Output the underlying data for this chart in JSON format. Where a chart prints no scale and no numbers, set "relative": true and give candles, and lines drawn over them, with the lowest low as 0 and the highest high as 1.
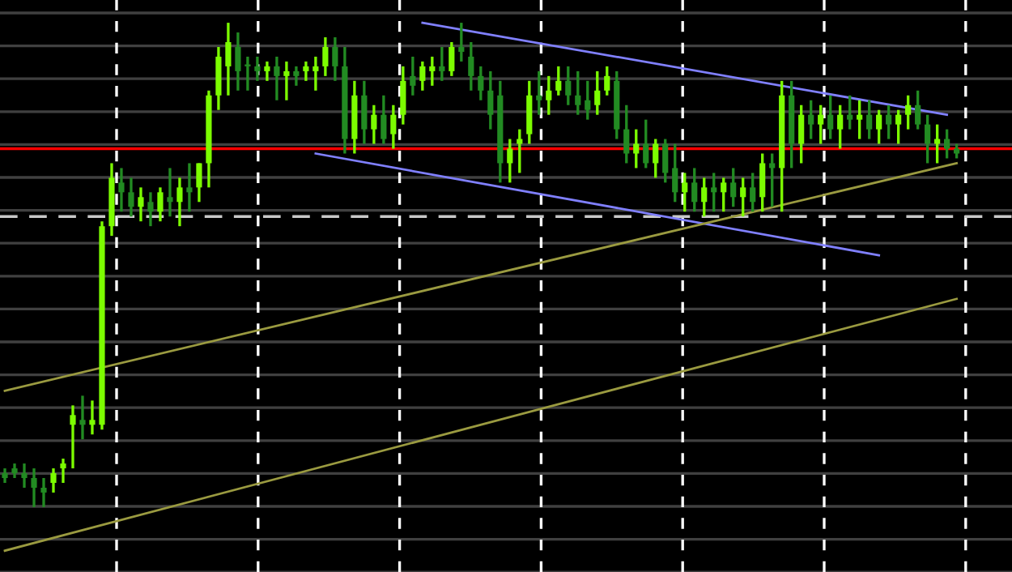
{
  "chart_data": {
    "type": "candlestick",
    "relative": true,
    "grid": true,
    "categories": [
      null,
      null,
      null,
      null,
      null,
      null,
      null,
      null,
      null,
      null,
      null,
      null,
      null,
      null,
      null,
      null,
      null,
      null,
      null,
      null,
      null,
      null,
      null,
      null,
      null,
      null,
      null,
      null,
      null,
      null,
      null,
      null,
      null,
      null,
      null,
      null,
      null,
      null,
      null,
      null,
      null,
      null,
      null,
      null,
      null,
      null,
      null,
      null,
      null,
      null,
      null,
      null,
      null,
      null,
      null,
      null,
      null,
      null,
      null,
      null,
      null,
      null,
      null,
      null,
      null,
      null,
      null,
      null,
      null,
      null,
      null,
      null,
      null,
      null,
      null,
      null,
      null,
      null,
      null,
      null,
      null,
      null,
      null,
      null,
      null,
      null,
      null,
      null,
      null,
      null,
      null,
      null,
      null,
      null,
      null,
      null,
      null,
      null,
      null
    ],
    "ohlc": [
      [
        0.07,
        0.08,
        0.05,
        0.06
      ],
      [
        0.08,
        0.09,
        0.06,
        0.07
      ],
      [
        0.07,
        0.09,
        0.04,
        0.06
      ],
      [
        0.06,
        0.08,
        0.0,
        0.04
      ],
      [
        0.04,
        0.06,
        0.0,
        0.03
      ],
      [
        0.05,
        0.08,
        0.03,
        0.07
      ],
      [
        0.08,
        0.1,
        0.05,
        0.09
      ],
      [
        0.17,
        0.21,
        0.08,
        0.19
      ],
      [
        0.18,
        0.23,
        0.14,
        0.17
      ],
      [
        0.17,
        0.22,
        0.15,
        0.18
      ],
      [
        0.17,
        0.59,
        0.16,
        0.58
      ],
      [
        0.58,
        0.71,
        0.56,
        0.68
      ],
      [
        0.67,
        0.7,
        0.61,
        0.65
      ],
      [
        0.65,
        0.68,
        0.6,
        0.62
      ],
      [
        0.62,
        0.66,
        0.59,
        0.64
      ],
      [
        0.63,
        0.65,
        0.58,
        0.61
      ],
      [
        0.61,
        0.66,
        0.59,
        0.65
      ],
      [
        0.64,
        0.7,
        0.6,
        0.63
      ],
      [
        0.63,
        0.68,
        0.58,
        0.66
      ],
      [
        0.66,
        0.71,
        0.61,
        0.65
      ],
      [
        0.66,
        0.71,
        0.63,
        0.71
      ],
      [
        0.71,
        0.86,
        0.66,
        0.85
      ],
      [
        0.85,
        0.95,
        0.82,
        0.93
      ],
      [
        0.91,
        1.0,
        0.85,
        0.96
      ],
      [
        0.95,
        0.98,
        0.86,
        0.9
      ],
      [
        0.91,
        0.93,
        0.86,
        0.91
      ],
      [
        0.91,
        0.93,
        0.88,
        0.9
      ],
      [
        0.9,
        0.92,
        0.88,
        0.91
      ],
      [
        0.91,
        0.93,
        0.84,
        0.89
      ],
      [
        0.89,
        0.92,
        0.84,
        0.9
      ],
      [
        0.9,
        0.91,
        0.87,
        0.89
      ],
      [
        0.9,
        0.92,
        0.88,
        0.91
      ],
      [
        0.9,
        0.93,
        0.86,
        0.91
      ],
      [
        0.91,
        0.97,
        0.89,
        0.95
      ],
      [
        0.95,
        0.97,
        0.88,
        0.91
      ],
      [
        0.91,
        0.95,
        0.73,
        0.76
      ],
      [
        0.76,
        0.88,
        0.73,
        0.85
      ],
      [
        0.85,
        0.88,
        0.75,
        0.78
      ],
      [
        0.78,
        0.83,
        0.75,
        0.81
      ],
      [
        0.81,
        0.85,
        0.75,
        0.76
      ],
      [
        0.77,
        0.83,
        0.74,
        0.81
      ],
      [
        0.81,
        0.91,
        0.79,
        0.88
      ],
      [
        0.89,
        0.93,
        0.85,
        0.87
      ],
      [
        0.88,
        0.92,
        0.86,
        0.91
      ],
      [
        0.9,
        0.93,
        0.87,
        0.91
      ],
      [
        0.91,
        0.95,
        0.88,
        0.9
      ],
      [
        0.9,
        0.96,
        0.89,
        0.95
      ],
      [
        0.95,
        1.0,
        0.92,
        0.94
      ],
      [
        0.93,
        0.96,
        0.86,
        0.89
      ],
      [
        0.89,
        0.91,
        0.84,
        0.86
      ],
      [
        0.86,
        0.9,
        0.78,
        0.81
      ],
      [
        0.85,
        0.88,
        0.67,
        0.71
      ],
      [
        0.71,
        0.76,
        0.67,
        0.74
      ],
      [
        0.75,
        0.78,
        0.69,
        0.76
      ],
      [
        0.77,
        0.88,
        0.75,
        0.85
      ],
      [
        0.85,
        0.9,
        0.81,
        0.84
      ],
      [
        0.84,
        0.89,
        0.81,
        0.86
      ],
      [
        0.86,
        0.91,
        0.85,
        0.88
      ],
      [
        0.88,
        0.91,
        0.83,
        0.85
      ],
      [
        0.85,
        0.9,
        0.81,
        0.83
      ],
      [
        0.84,
        0.88,
        0.8,
        0.82
      ],
      [
        0.83,
        0.9,
        0.81,
        0.86
      ],
      [
        0.86,
        0.91,
        0.85,
        0.89
      ],
      [
        0.88,
        0.9,
        0.76,
        0.78
      ],
      [
        0.78,
        0.83,
        0.71,
        0.73
      ],
      [
        0.73,
        0.78,
        0.7,
        0.75
      ],
      [
        0.75,
        0.8,
        0.7,
        0.71
      ],
      [
        0.71,
        0.76,
        0.68,
        0.75
      ],
      [
        0.75,
        0.76,
        0.67,
        0.69
      ],
      [
        0.7,
        0.75,
        0.63,
        0.65
      ],
      [
        0.65,
        0.69,
        0.61,
        0.67
      ],
      [
        0.67,
        0.7,
        0.61,
        0.63
      ],
      [
        0.63,
        0.68,
        0.6,
        0.66
      ],
      [
        0.66,
        0.69,
        0.61,
        0.65
      ],
      [
        0.65,
        0.68,
        0.61,
        0.67
      ],
      [
        0.67,
        0.7,
        0.62,
        0.64
      ],
      [
        0.64,
        0.68,
        0.6,
        0.66
      ],
      [
        0.66,
        0.69,
        0.61,
        0.63
      ],
      [
        0.64,
        0.73,
        0.61,
        0.71
      ],
      [
        0.71,
        0.73,
        0.62,
        0.7
      ],
      [
        0.7,
        0.88,
        0.61,
        0.85
      ],
      [
        0.85,
        0.88,
        0.7,
        0.75
      ],
      [
        0.75,
        0.83,
        0.71,
        0.81
      ],
      [
        0.81,
        0.84,
        0.76,
        0.79
      ],
      [
        0.79,
        0.83,
        0.75,
        0.81
      ],
      [
        0.81,
        0.85,
        0.76,
        0.78
      ],
      [
        0.78,
        0.83,
        0.74,
        0.81
      ],
      [
        0.81,
        0.85,
        0.78,
        0.8
      ],
      [
        0.8,
        0.84,
        0.76,
        0.81
      ],
      [
        0.81,
        0.84,
        0.76,
        0.78
      ],
      [
        0.78,
        0.82,
        0.75,
        0.81
      ],
      [
        0.81,
        0.83,
        0.76,
        0.79
      ],
      [
        0.79,
        0.82,
        0.75,
        0.81
      ],
      [
        0.81,
        0.85,
        0.78,
        0.83
      ],
      [
        0.83,
        0.86,
        0.78,
        0.79
      ],
      [
        0.79,
        0.81,
        0.71,
        0.75
      ],
      [
        0.75,
        0.79,
        0.71,
        0.76
      ],
      [
        0.76,
        0.78,
        0.72,
        0.74
      ],
      [
        0.74,
        0.75,
        0.72,
        0.73
      ]
    ],
    "colors": [
      "#228b22",
      "#228b22",
      "#228b22",
      "#228b22",
      "#228b22",
      "#7cfc00",
      "#7cfc00",
      "#7cfc00",
      "#228b22",
      "#7cfc00",
      "#7cfc00",
      "#7cfc00",
      "#228b22",
      "#228b22",
      "#7cfc00",
      "#228b22",
      "#7cfc00",
      "#228b22",
      "#7cfc00",
      "#228b22",
      "#7cfc00",
      "#7cfc00",
      "#7cfc00",
      "#7cfc00",
      "#228b22",
      "#228b22",
      "#228b22",
      "#7cfc00",
      "#228b22",
      "#7cfc00",
      "#228b22",
      "#7cfc00",
      "#7cfc00",
      "#7cfc00",
      "#228b22",
      "#228b22",
      "#7cfc00",
      "#228b22",
      "#7cfc00",
      "#228b22",
      "#7cfc00",
      "#7cfc00",
      "#228b22",
      "#7cfc00",
      "#7cfc00",
      "#228b22",
      "#7cfc00",
      "#228b22",
      "#228b22",
      "#228b22",
      "#228b22",
      "#228b22",
      "#7cfc00",
      "#7cfc00",
      "#7cfc00",
      "#228b22",
      "#7cfc00",
      "#7cfc00",
      "#228b22",
      "#228b22",
      "#228b22",
      "#7cfc00",
      "#7cfc00",
      "#228b22",
      "#228b22",
      "#7cfc00",
      "#228b22",
      "#7cfc00",
      "#228b22",
      "#228b22",
      "#7cfc00",
      "#228b22",
      "#7cfc00",
      "#228b22",
      "#7cfc00",
      "#228b22",
      "#7cfc00",
      "#228b22",
      "#7cfc00",
      "#228b22",
      "#7cfc00",
      "#228b22",
      "#7cfc00",
      "#228b22",
      "#7cfc00",
      "#228b22",
      "#7cfc00",
      "#228b22",
      "#7cfc00",
      "#228b22",
      "#7cfc00",
      "#228b22",
      "#7cfc00",
      "#7cfc00",
      "#228b22",
      "#228b22",
      "#7cfc00",
      "#228b22",
      "#228b22"
    ],
    "series": [
      {
        "type": "line",
        "color": "#8080ff",
        "values": [
          null,
          null,
          null,
          null,
          null,
          null,
          null,
          null,
          null,
          null,
          null,
          null,
          null,
          null,
          null,
          null,
          null,
          null,
          null,
          null,
          null,
          null,
          null,
          null,
          null,
          null,
          null,
          null,
          null,
          null,
          null,
          null,
          null,
          null,
          null,
          null,
          null,
          null,
          null,
          null,
          null,
          null,
          null,
          1.0,
          null,
          null,
          null,
          null,
          null,
          null,
          null,
          null,
          null,
          null,
          null,
          null,
          null,
          null,
          null,
          null,
          null,
          null,
          null,
          null,
          null,
          null,
          null,
          null,
          null,
          null,
          null,
          null,
          null,
          null,
          null,
          null,
          null,
          null,
          null,
          null,
          null,
          null,
          null,
          null,
          null,
          null,
          null,
          null,
          null,
          null,
          null,
          null,
          null,
          null,
          null,
          null,
          null,
          0.81,
          null
        ]
      },
      {
        "type": "line",
        "color": "#8080ff",
        "values": [
          null,
          null,
          null,
          null,
          null,
          null,
          null,
          null,
          null,
          null,
          null,
          null,
          null,
          null,
          null,
          null,
          null,
          null,
          null,
          null,
          null,
          null,
          null,
          null,
          null,
          null,
          null,
          null,
          null,
          null,
          null,
          null,
          0.73,
          null,
          null,
          null,
          null,
          null,
          null,
          null,
          null,
          null,
          null,
          null,
          null,
          null,
          null,
          null,
          null,
          null,
          null,
          null,
          null,
          null,
          null,
          null,
          null,
          null,
          null,
          null,
          null,
          null,
          null,
          null,
          null,
          null,
          null,
          null,
          null,
          null,
          null,
          null,
          null,
          null,
          null,
          null,
          null,
          null,
          null,
          null,
          null,
          null,
          null,
          null,
          null,
          null,
          null,
          null,
          null,
          null,
          0.52,
          null,
          null,
          null,
          null,
          null,
          null,
          null,
          null
        ]
      },
      {
        "type": "line",
        "color": "#9a9a40",
        "values": [
          0.24,
          null,
          null,
          null,
          null,
          null,
          null,
          null,
          null,
          null,
          null,
          null,
          null,
          null,
          null,
          null,
          null,
          null,
          null,
          null,
          null,
          null,
          null,
          null,
          null,
          null,
          null,
          null,
          null,
          null,
          null,
          null,
          null,
          null,
          null,
          null,
          null,
          null,
          null,
          null,
          null,
          null,
          null,
          null,
          null,
          null,
          null,
          null,
          null,
          null,
          null,
          null,
          null,
          null,
          null,
          null,
          null,
          null,
          null,
          null,
          null,
          null,
          null,
          null,
          null,
          null,
          null,
          null,
          null,
          null,
          null,
          null,
          null,
          null,
          null,
          null,
          null,
          null,
          null,
          null,
          null,
          null,
          null,
          null,
          null,
          null,
          null,
          null,
          null,
          null,
          null,
          null,
          null,
          null,
          null,
          null,
          null,
          null,
          0.71
        ]
      },
      {
        "type": "line",
        "color": "#9a9a40",
        "values": [
          -0.09,
          null,
          null,
          null,
          null,
          null,
          null,
          null,
          null,
          null,
          null,
          null,
          null,
          null,
          null,
          null,
          null,
          null,
          null,
          null,
          null,
          null,
          null,
          null,
          null,
          null,
          null,
          null,
          null,
          null,
          null,
          null,
          null,
          null,
          null,
          null,
          null,
          null,
          null,
          null,
          null,
          null,
          null,
          null,
          null,
          null,
          null,
          null,
          null,
          null,
          null,
          null,
          null,
          null,
          null,
          null,
          null,
          null,
          null,
          null,
          null,
          null,
          null,
          null,
          null,
          null,
          null,
          null,
          null,
          null,
          null,
          null,
          null,
          null,
          null,
          null,
          null,
          null,
          null,
          null,
          null,
          null,
          null,
          null,
          null,
          null,
          null,
          null,
          null,
          null,
          null,
          null,
          null,
          null,
          null,
          null,
          null,
          null,
          0.43
        ]
      }
    ],
    "ref_lines": [
      {
        "axis": "y",
        "value": 0.74,
        "color": "#ff0000",
        "line_style": "solid"
      },
      {
        "axis": "y",
        "value": 0.6,
        "color": "#c8c8c8",
        "line_style": "dashed"
      }
    ]
  }
}
